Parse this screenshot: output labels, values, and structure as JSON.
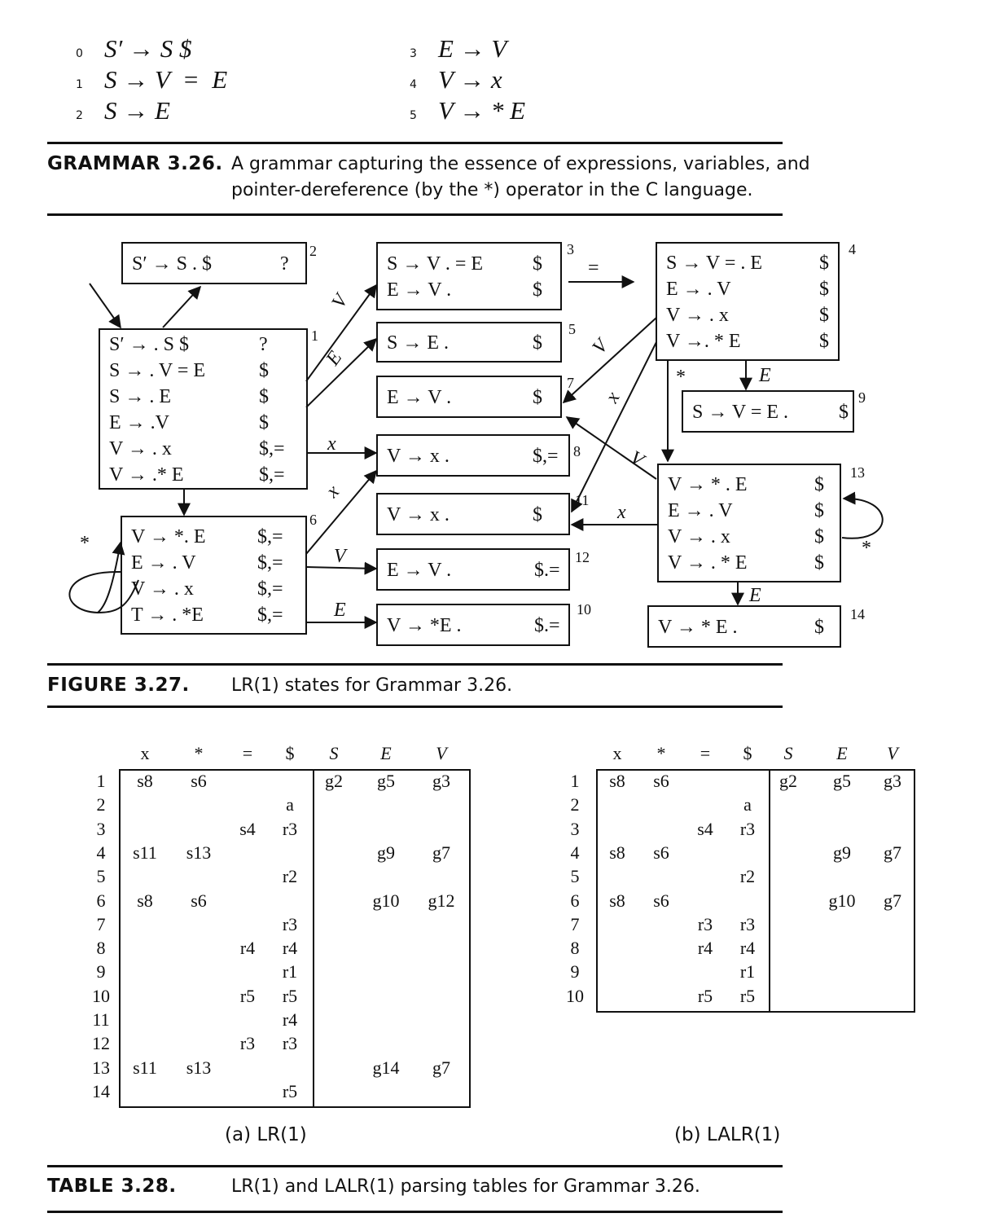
{
  "grammar": {
    "productions": [
      {
        "num": "0",
        "text": "S′ → S $"
      },
      {
        "num": "1",
        "text": "S → V  =  E"
      },
      {
        "num": "2",
        "text": "S → E"
      },
      {
        "num": "3",
        "text": "E → V"
      },
      {
        "num": "4",
        "text": "V → x"
      },
      {
        "num": "5",
        "text": "V → * E"
      }
    ],
    "caption_label": "GRAMMAR 3.26.",
    "caption_line1": "A grammar capturing the essence of expressions, variables, and",
    "caption_line2": "pointer-dereference (by the *) operator in the C language."
  },
  "figure": {
    "caption_label": "FIGURE 3.27.",
    "caption_text": "LR(1) states for Grammar 3.26.",
    "states": [
      {
        "id": "1",
        "items": [
          [
            "S′ → . S $",
            "?"
          ],
          [
            "S → . V = E",
            "$"
          ],
          [
            "S → . E",
            "$"
          ],
          [
            "E → .V",
            "$"
          ],
          [
            "V → . x",
            "$,="
          ],
          [
            "V → .* E",
            "$,="
          ]
        ]
      },
      {
        "id": "2",
        "items": [
          [
            "S′ → S . $",
            "?"
          ]
        ]
      },
      {
        "id": "3",
        "items": [
          [
            "S → V . = E",
            "$"
          ],
          [
            "E → V .",
            "$"
          ]
        ]
      },
      {
        "id": "4",
        "items": [
          [
            "S → V = . E",
            "$"
          ],
          [
            "E → . V",
            "$"
          ],
          [
            "V → . x",
            "$"
          ],
          [
            "V →. * E",
            "$"
          ]
        ]
      },
      {
        "id": "5",
        "items": [
          [
            "S → E .",
            "$"
          ]
        ]
      },
      {
        "id": "6",
        "items": [
          [
            "V → *. E",
            "$,="
          ],
          [
            "E → . V",
            "$,="
          ],
          [
            "V → . x",
            "$,="
          ],
          [
            "T → . *E",
            "$,="
          ]
        ]
      },
      {
        "id": "7",
        "items": [
          [
            "E → V .",
            "$"
          ]
        ]
      },
      {
        "id": "8",
        "items": [
          [
            "V → x .",
            "$,="
          ]
        ]
      },
      {
        "id": "9",
        "items": [
          [
            "S → V = E .",
            "$"
          ]
        ]
      },
      {
        "id": "10",
        "items": [
          [
            "V → *E .",
            "$.="
          ]
        ]
      },
      {
        "id": "11",
        "items": [
          [
            "V → x .",
            "$"
          ]
        ]
      },
      {
        "id": "12",
        "items": [
          [
            "E → V .",
            "$.="
          ]
        ]
      },
      {
        "id": "13",
        "items": [
          [
            "V → * . E",
            "$"
          ],
          [
            "E → . V",
            "$"
          ],
          [
            "V → . x",
            "$"
          ],
          [
            "V → . * E",
            "$"
          ]
        ]
      },
      {
        "id": "14",
        "items": [
          [
            "V → * E .",
            "$"
          ]
        ]
      }
    ],
    "edge_labels": [
      "V",
      "E",
      "x",
      "x",
      "V",
      "E",
      "=",
      "V",
      "x",
      "V",
      "x",
      "*",
      "E",
      "E",
      "*",
      "*"
    ]
  },
  "tables": {
    "caption_label": "TABLE 3.28.",
    "caption_text": "LR(1) and LALR(1) parsing tables for Grammar 3.26.",
    "headers": [
      "x",
      "*",
      "=",
      "$",
      "S",
      "E",
      "V"
    ],
    "lr1": {
      "label": "(a)  LR(1)",
      "rows": [
        [
          "1",
          "s8",
          "s6",
          "",
          "",
          "g2",
          "g5",
          "g3"
        ],
        [
          "2",
          "",
          "",
          "",
          "a",
          "",
          "",
          ""
        ],
        [
          "3",
          "",
          "",
          "s4",
          "r3",
          "",
          "",
          ""
        ],
        [
          "4",
          "s11",
          "s13",
          "",
          "",
          "",
          "g9",
          "g7"
        ],
        [
          "5",
          "",
          "",
          "",
          "r2",
          "",
          "",
          ""
        ],
        [
          "6",
          "s8",
          "s6",
          "",
          "",
          "",
          "g10",
          "g12"
        ],
        [
          "7",
          "",
          "",
          "",
          "r3",
          "",
          "",
          ""
        ],
        [
          "8",
          "",
          "",
          "r4",
          "r4",
          "",
          "",
          ""
        ],
        [
          "9",
          "",
          "",
          "",
          "r1",
          "",
          "",
          ""
        ],
        [
          "10",
          "",
          "",
          "r5",
          "r5",
          "",
          "",
          ""
        ],
        [
          "11",
          "",
          "",
          "",
          "r4",
          "",
          "",
          ""
        ],
        [
          "12",
          "",
          "",
          "r3",
          "r3",
          "",
          "",
          ""
        ],
        [
          "13",
          "s11",
          "s13",
          "",
          "",
          "",
          "g14",
          "g7"
        ],
        [
          "14",
          "",
          "",
          "",
          "r5",
          "",
          "",
          ""
        ]
      ]
    },
    "lalr1": {
      "label": "(b)  LALR(1)",
      "rows": [
        [
          "1",
          "s8",
          "s6",
          "",
          "",
          "g2",
          "g5",
          "g3"
        ],
        [
          "2",
          "",
          "",
          "",
          "a",
          "",
          "",
          ""
        ],
        [
          "3",
          "",
          "",
          "s4",
          "r3",
          "",
          "",
          ""
        ],
        [
          "4",
          "s8",
          "s6",
          "",
          "",
          "",
          "g9",
          "g7"
        ],
        [
          "5",
          "",
          "",
          "",
          "r2",
          "",
          "",
          ""
        ],
        [
          "6",
          "s8",
          "s6",
          "",
          "",
          "",
          "g10",
          "g7"
        ],
        [
          "7",
          "",
          "",
          "r3",
          "r3",
          "",
          "",
          ""
        ],
        [
          "8",
          "",
          "",
          "r4",
          "r4",
          "",
          "",
          ""
        ],
        [
          "9",
          "",
          "",
          "",
          "r1",
          "",
          "",
          ""
        ],
        [
          "10",
          "",
          "",
          "r5",
          "r5",
          "",
          "",
          ""
        ]
      ]
    }
  }
}
